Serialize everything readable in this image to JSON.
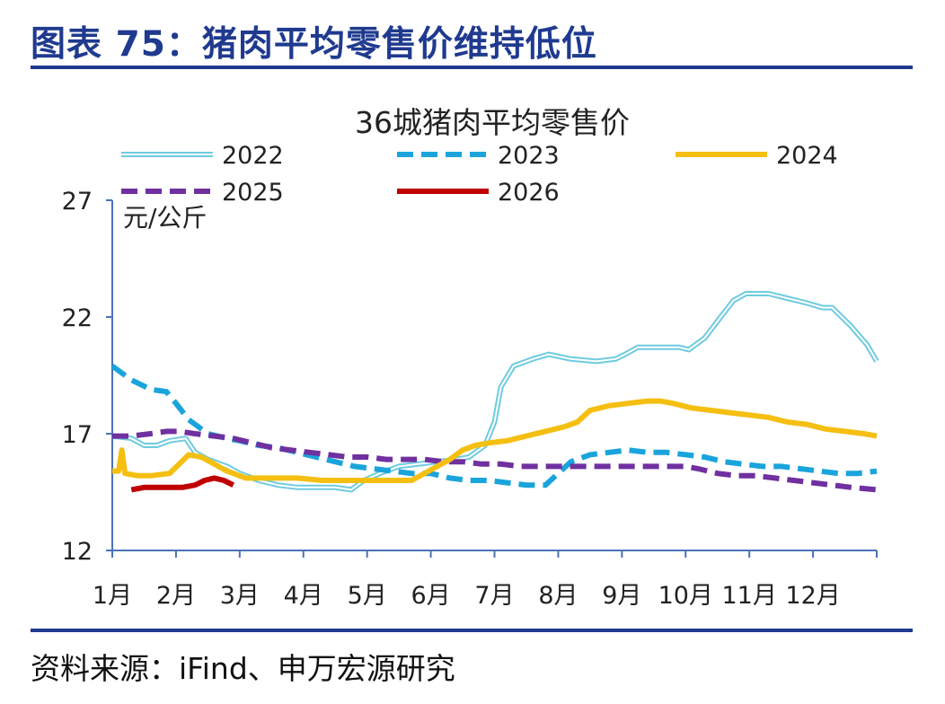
{
  "header": {
    "title": "图表 75：猪肉平均零售价维持低位"
  },
  "footer": {
    "source": "资料来源：iFind、申万宏源研究"
  },
  "chart_data": {
    "type": "line",
    "title": "36城猪肉平均零售价",
    "ylabel": "元/公斤",
    "xlabel": "",
    "ylim": [
      12,
      27
    ],
    "yticks": [
      12,
      17,
      22,
      27
    ],
    "xlim": [
      1,
      13
    ],
    "month_ticks": [
      {
        "x": 1,
        "label": "1月"
      },
      {
        "x": 2,
        "label": "2月"
      },
      {
        "x": 3,
        "label": "3月"
      },
      {
        "x": 4,
        "label": "4月"
      },
      {
        "x": 5,
        "label": "5月"
      },
      {
        "x": 6,
        "label": "6月"
      },
      {
        "x": 7,
        "label": "7月"
      },
      {
        "x": 8,
        "label": "8月"
      },
      {
        "x": 9,
        "label": "9月"
      },
      {
        "x": 10,
        "label": "10月"
      },
      {
        "x": 11,
        "label": "11月"
      },
      {
        "x": 12,
        "label": "12月"
      }
    ],
    "colors": {
      "axis": "#4a72b8",
      "s2022": "#6fcbe0",
      "s2023": "#1aa4dc",
      "s2024": "#f5bf12",
      "s2025": "#7030a0",
      "s2026": "#c00000"
    },
    "series": [
      {
        "name": "2022",
        "style": "double",
        "color": "#6fcbe0",
        "points": [
          [
            1.0,
            16.9
          ],
          [
            1.3,
            16.8
          ],
          [
            1.5,
            16.5
          ],
          [
            1.7,
            16.5
          ],
          [
            1.9,
            16.7
          ],
          [
            2.15,
            16.8
          ],
          [
            2.3,
            16.2
          ],
          [
            2.5,
            15.9
          ],
          [
            2.8,
            15.6
          ],
          [
            3.0,
            15.3
          ],
          [
            3.3,
            15.0
          ],
          [
            3.6,
            14.8
          ],
          [
            3.9,
            14.7
          ],
          [
            4.2,
            14.7
          ],
          [
            4.5,
            14.7
          ],
          [
            4.75,
            14.6
          ],
          [
            4.95,
            15.0
          ],
          [
            5.2,
            15.3
          ],
          [
            5.5,
            15.6
          ],
          [
            5.8,
            15.7
          ],
          [
            6.1,
            15.8
          ],
          [
            6.4,
            15.9
          ],
          [
            6.6,
            16.0
          ],
          [
            6.85,
            16.5
          ],
          [
            7.0,
            17.5
          ],
          [
            7.1,
            19.0
          ],
          [
            7.3,
            19.9
          ],
          [
            7.6,
            20.2
          ],
          [
            7.85,
            20.4
          ],
          [
            8.2,
            20.2
          ],
          [
            8.6,
            20.1
          ],
          [
            8.9,
            20.2
          ],
          [
            9.05,
            20.4
          ],
          [
            9.25,
            20.7
          ],
          [
            9.5,
            20.7
          ],
          [
            9.9,
            20.7
          ],
          [
            10.05,
            20.6
          ],
          [
            10.3,
            21.1
          ],
          [
            10.55,
            22.0
          ],
          [
            10.75,
            22.7
          ],
          [
            10.95,
            23.0
          ],
          [
            11.3,
            23.0
          ],
          [
            11.6,
            22.8
          ],
          [
            11.9,
            22.6
          ],
          [
            12.15,
            22.4
          ],
          [
            12.3,
            22.4
          ],
          [
            12.6,
            21.6
          ],
          [
            12.85,
            20.8
          ],
          [
            13.0,
            20.1
          ]
        ]
      },
      {
        "name": "2023",
        "style": "dashed",
        "color": "#1aa4dc",
        "points": [
          [
            1.0,
            19.9
          ],
          [
            1.3,
            19.3
          ],
          [
            1.6,
            18.9
          ],
          [
            1.85,
            18.8
          ],
          [
            2.0,
            18.3
          ],
          [
            2.2,
            17.6
          ],
          [
            2.5,
            17.0
          ],
          [
            2.8,
            16.8
          ],
          [
            3.0,
            16.7
          ],
          [
            3.3,
            16.5
          ],
          [
            3.6,
            16.4
          ],
          [
            3.9,
            16.2
          ],
          [
            4.2,
            16.0
          ],
          [
            4.5,
            15.8
          ],
          [
            4.8,
            15.6
          ],
          [
            5.1,
            15.5
          ],
          [
            5.4,
            15.4
          ],
          [
            5.7,
            15.3
          ],
          [
            6.0,
            15.3
          ],
          [
            6.3,
            15.1
          ],
          [
            6.6,
            15.0
          ],
          [
            6.9,
            15.0
          ],
          [
            7.2,
            14.9
          ],
          [
            7.5,
            14.8
          ],
          [
            7.8,
            14.8
          ],
          [
            8.0,
            15.3
          ],
          [
            8.2,
            15.8
          ],
          [
            8.5,
            16.1
          ],
          [
            8.8,
            16.2
          ],
          [
            9.1,
            16.3
          ],
          [
            9.4,
            16.2
          ],
          [
            9.7,
            16.2
          ],
          [
            10.0,
            16.1
          ],
          [
            10.3,
            16.0
          ],
          [
            10.6,
            15.8
          ],
          [
            10.9,
            15.7
          ],
          [
            11.2,
            15.6
          ],
          [
            11.5,
            15.6
          ],
          [
            11.8,
            15.5
          ],
          [
            12.1,
            15.4
          ],
          [
            12.4,
            15.3
          ],
          [
            12.7,
            15.3
          ],
          [
            13.0,
            15.4
          ]
        ]
      },
      {
        "name": "2024",
        "style": "solid",
        "color": "#f5bf12",
        "points": [
          [
            1.0,
            15.4
          ],
          [
            1.1,
            15.4
          ],
          [
            1.15,
            16.3
          ],
          [
            1.2,
            15.3
          ],
          [
            1.4,
            15.2
          ],
          [
            1.6,
            15.2
          ],
          [
            1.9,
            15.3
          ],
          [
            2.05,
            15.7
          ],
          [
            2.2,
            16.1
          ],
          [
            2.4,
            16.0
          ],
          [
            2.6,
            15.7
          ],
          [
            2.8,
            15.4
          ],
          [
            3.1,
            15.1
          ],
          [
            3.5,
            15.1
          ],
          [
            3.9,
            15.1
          ],
          [
            4.3,
            15.0
          ],
          [
            4.7,
            15.0
          ],
          [
            5.1,
            15.0
          ],
          [
            5.4,
            15.0
          ],
          [
            5.7,
            15.0
          ],
          [
            5.9,
            15.3
          ],
          [
            6.1,
            15.6
          ],
          [
            6.3,
            15.9
          ],
          [
            6.5,
            16.3
          ],
          [
            6.7,
            16.5
          ],
          [
            6.9,
            16.6
          ],
          [
            7.2,
            16.7
          ],
          [
            7.5,
            16.9
          ],
          [
            7.8,
            17.1
          ],
          [
            8.1,
            17.3
          ],
          [
            8.3,
            17.5
          ],
          [
            8.5,
            18.0
          ],
          [
            8.8,
            18.2
          ],
          [
            9.1,
            18.3
          ],
          [
            9.4,
            18.4
          ],
          [
            9.6,
            18.4
          ],
          [
            9.8,
            18.3
          ],
          [
            10.1,
            18.1
          ],
          [
            10.4,
            18.0
          ],
          [
            10.7,
            17.9
          ],
          [
            11.0,
            17.8
          ],
          [
            11.3,
            17.7
          ],
          [
            11.6,
            17.5
          ],
          [
            11.9,
            17.4
          ],
          [
            12.2,
            17.2
          ],
          [
            12.5,
            17.1
          ],
          [
            12.8,
            17.0
          ],
          [
            13.0,
            16.9
          ]
        ]
      },
      {
        "name": "2025",
        "style": "dashed",
        "color": "#7030a0",
        "points": [
          [
            1.0,
            16.9
          ],
          [
            1.3,
            16.9
          ],
          [
            1.6,
            17.0
          ],
          [
            1.85,
            17.1
          ],
          [
            2.05,
            17.1
          ],
          [
            2.3,
            17.0
          ],
          [
            2.6,
            16.9
          ],
          [
            2.9,
            16.8
          ],
          [
            3.2,
            16.6
          ],
          [
            3.5,
            16.4
          ],
          [
            3.8,
            16.3
          ],
          [
            4.1,
            16.2
          ],
          [
            4.4,
            16.1
          ],
          [
            4.7,
            16.0
          ],
          [
            5.0,
            16.0
          ],
          [
            5.3,
            15.9
          ],
          [
            5.6,
            15.9
          ],
          [
            5.9,
            15.9
          ],
          [
            6.2,
            15.8
          ],
          [
            6.5,
            15.8
          ],
          [
            6.8,
            15.7
          ],
          [
            7.1,
            15.7
          ],
          [
            7.4,
            15.6
          ],
          [
            7.7,
            15.6
          ],
          [
            8.0,
            15.6
          ],
          [
            8.3,
            15.6
          ],
          [
            8.6,
            15.6
          ],
          [
            8.9,
            15.6
          ],
          [
            9.2,
            15.6
          ],
          [
            9.5,
            15.6
          ],
          [
            9.8,
            15.6
          ],
          [
            10.0,
            15.6
          ],
          [
            10.2,
            15.5
          ],
          [
            10.5,
            15.3
          ],
          [
            10.8,
            15.2
          ],
          [
            11.1,
            15.2
          ],
          [
            11.4,
            15.1
          ],
          [
            11.7,
            15.0
          ],
          [
            12.0,
            14.9
          ],
          [
            12.3,
            14.8
          ],
          [
            12.6,
            14.7
          ],
          [
            13.0,
            14.6
          ]
        ]
      },
      {
        "name": "2026",
        "style": "solid",
        "color": "#c00000",
        "points": [
          [
            1.3,
            14.6
          ],
          [
            1.5,
            14.7
          ],
          [
            1.7,
            14.7
          ],
          [
            1.9,
            14.7
          ],
          [
            2.1,
            14.7
          ],
          [
            2.3,
            14.8
          ],
          [
            2.45,
            15.0
          ],
          [
            2.6,
            15.1
          ],
          [
            2.75,
            15.0
          ],
          [
            2.9,
            14.8
          ]
        ]
      }
    ]
  }
}
